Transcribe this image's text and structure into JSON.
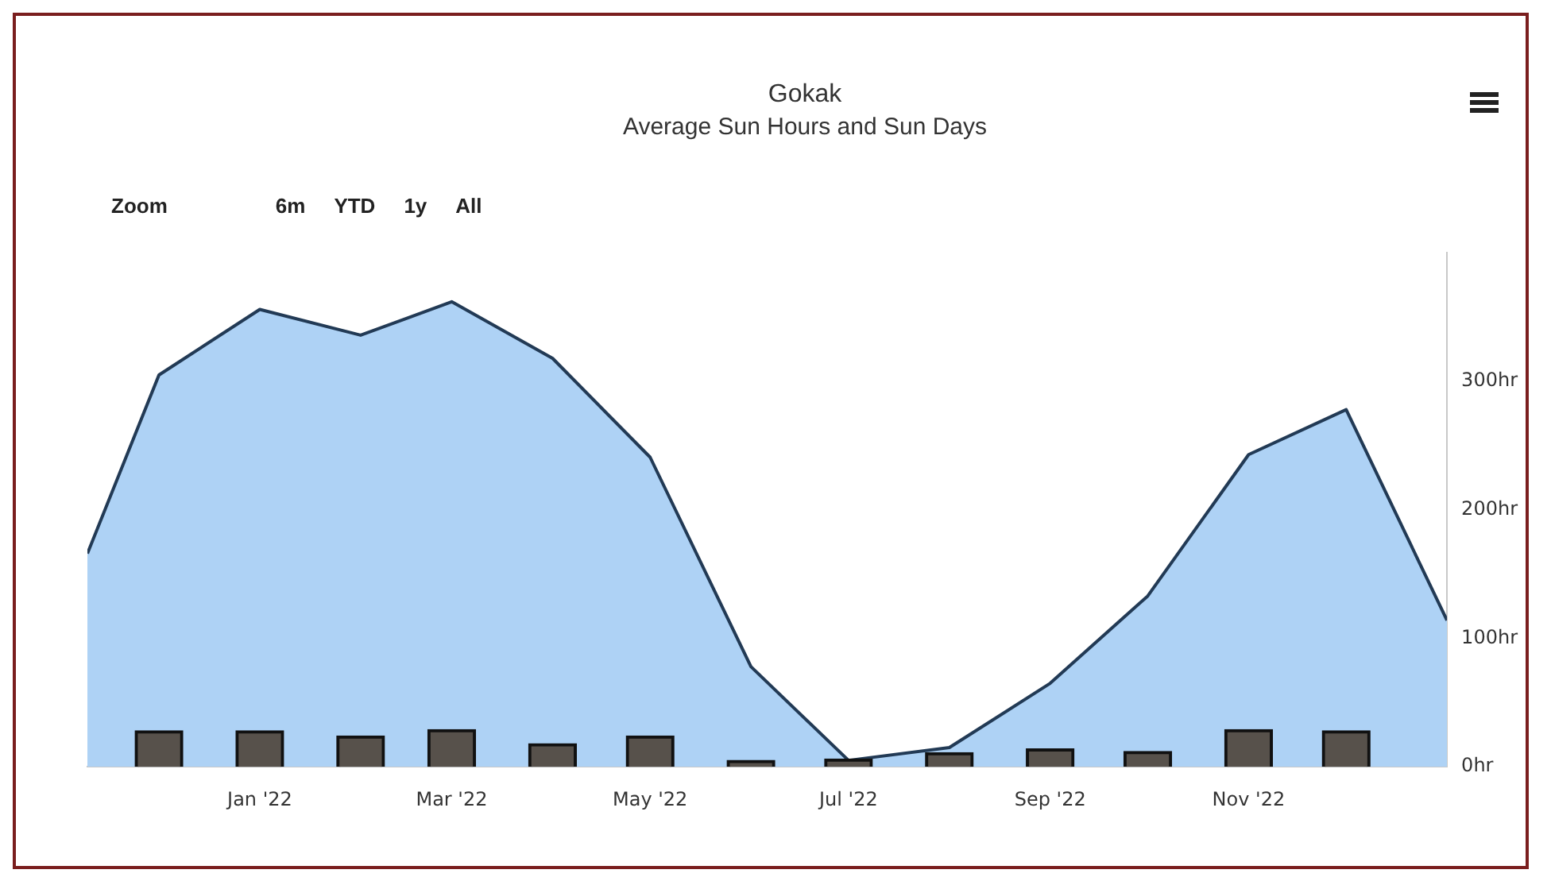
{
  "chart_data": {
    "type": "area",
    "title": "Gokak",
    "subtitle": "Average Sun Hours and Sun Days",
    "annotations": [
      "Zoom",
      "6m",
      "YTD",
      "1y",
      "All"
    ],
    "x": [
      "2021-11-09",
      "2021-12",
      "2022-01",
      "2022-02",
      "2022-03",
      "2022-04",
      "2022-05",
      "2022-06",
      "2022-07",
      "2022-08",
      "2022-09",
      "2022-10",
      "2022-11",
      "2022-12",
      "2023-01"
    ],
    "series": [
      {
        "color": "#aed2f5",
        "values": [
          166,
          305,
          356,
          336,
          362,
          318,
          241,
          78,
          5,
          15,
          65,
          133,
          243,
          278,
          114
        ]
      },
      {
        "type": "bar",
        "color": "#57514b",
        "x": [
          "2021-12",
          "2022-01",
          "2022-02",
          "2022-03",
          "2022-04",
          "2022-05",
          "2022-06",
          "2022-07",
          "2022-08",
          "2022-09",
          "2022-10",
          "2022-11",
          "2022-12"
        ],
        "values": [
          28,
          28,
          24,
          29,
          18,
          24,
          5,
          6,
          11,
          14,
          12,
          29,
          28
        ]
      }
    ],
    "xlim": [
      "2021-11-09",
      "2023-01"
    ],
    "xticks": [
      {
        "value": "2022-01",
        "label": "Jan '22"
      },
      {
        "value": "2022-03",
        "label": "Mar '22"
      },
      {
        "value": "2022-05",
        "label": "May '22"
      },
      {
        "value": "2022-07",
        "label": "Jul '22"
      },
      {
        "value": "2022-09",
        "label": "Sep '22"
      },
      {
        "value": "2022-11",
        "label": "Nov '22"
      }
    ],
    "ylim": [
      0,
      400
    ],
    "yticks": [
      {
        "value": 0,
        "label": "0hr"
      },
      {
        "value": 100,
        "label": "100hr"
      },
      {
        "value": 200,
        "label": "200hr"
      },
      {
        "value": 300,
        "label": "300hr"
      }
    ],
    "grid": false,
    "legend": false
  }
}
